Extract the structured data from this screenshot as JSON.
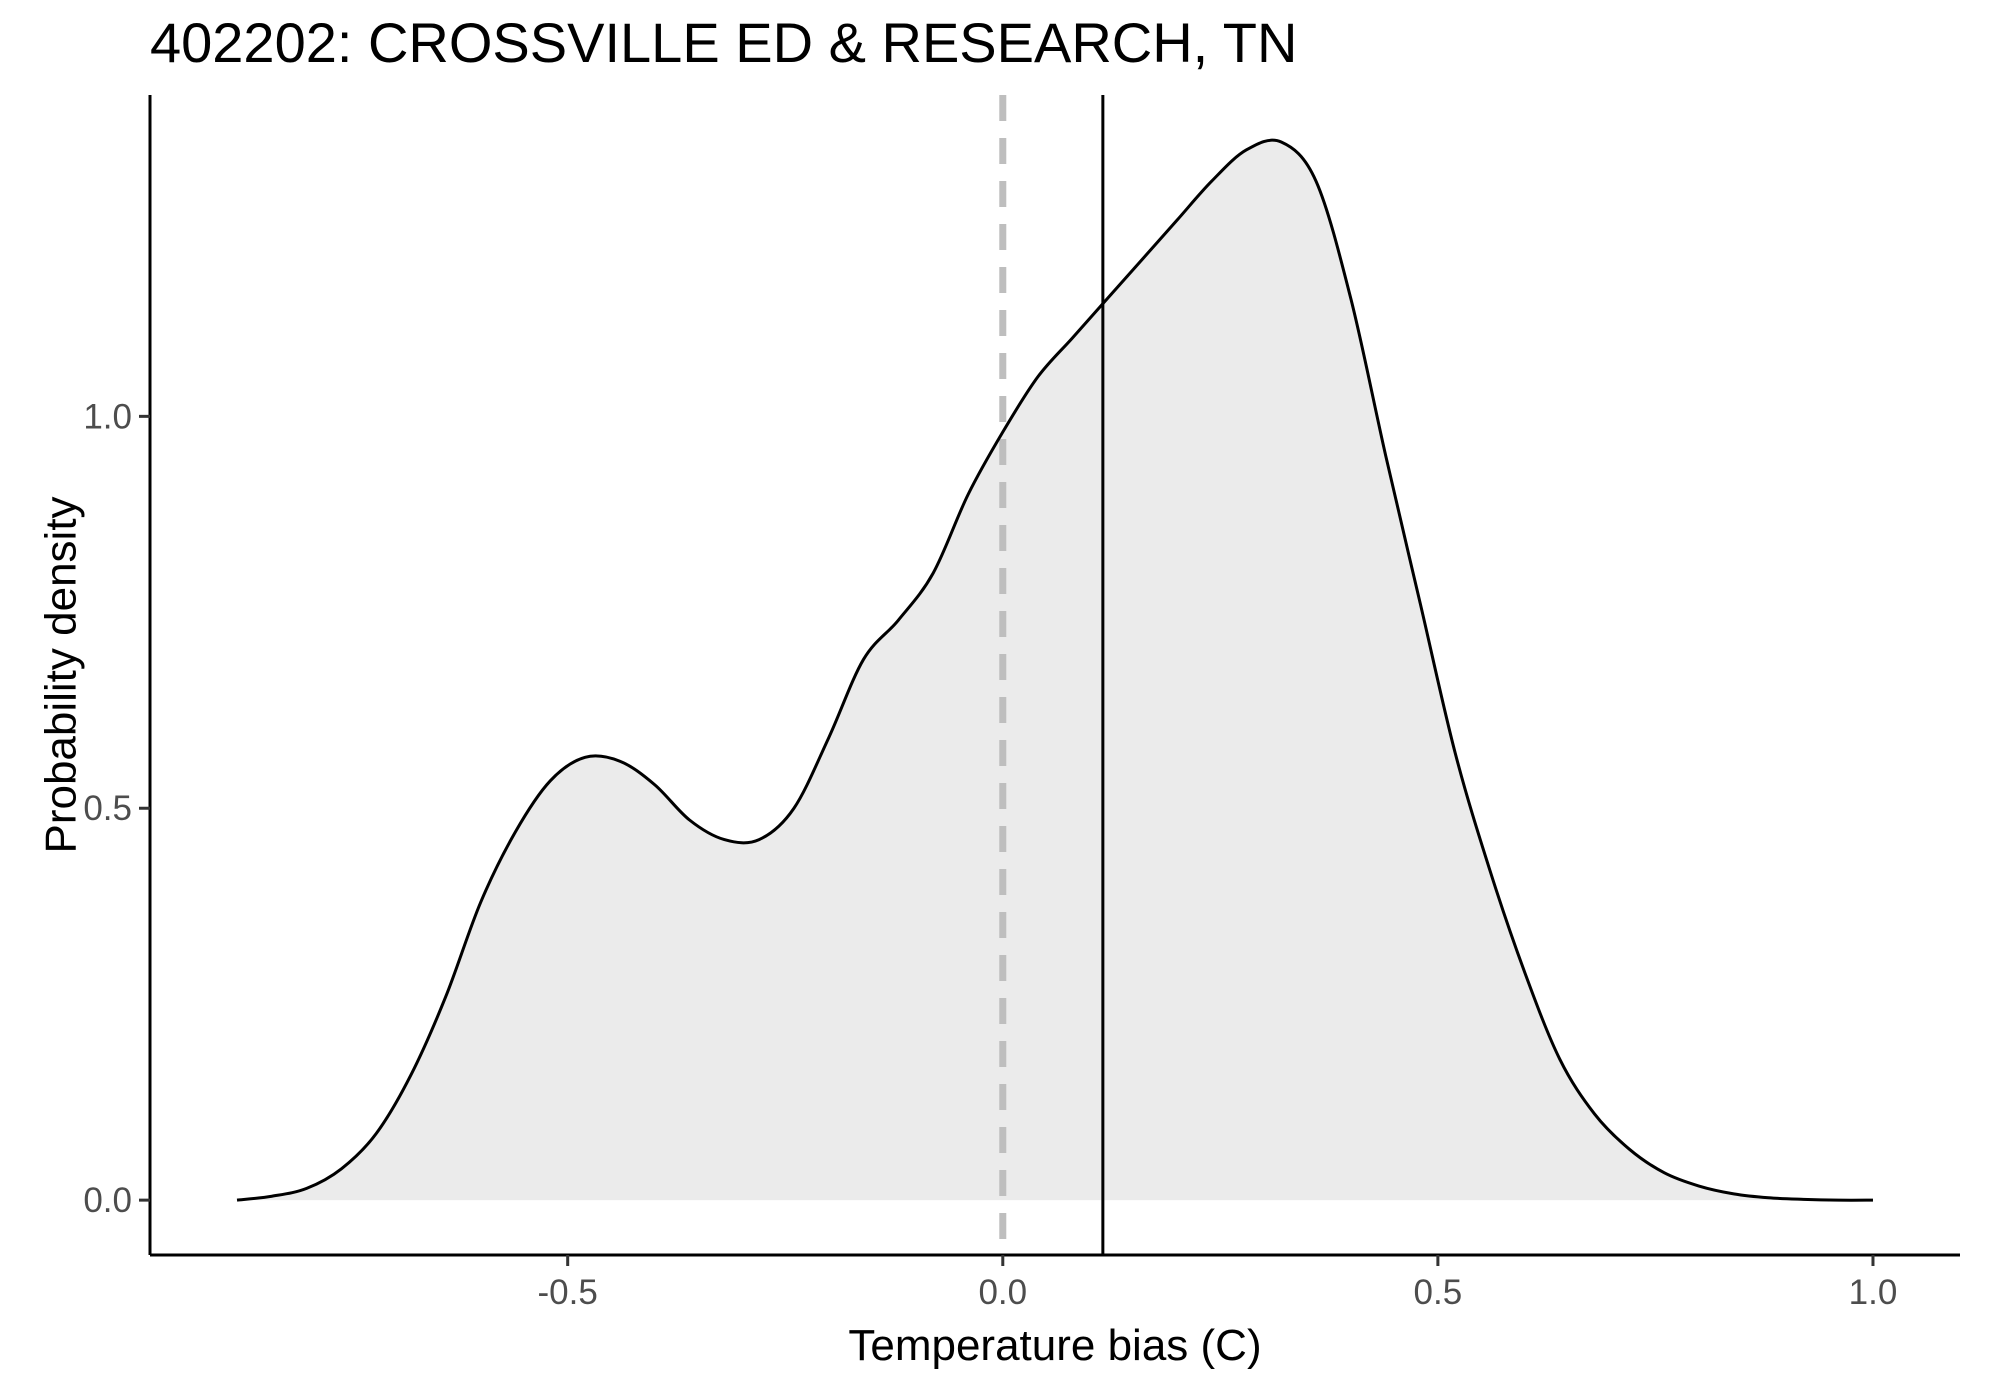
{
  "chart_data": {
    "type": "area",
    "title": "402202: CROSSVILLE ED & RESEARCH, TN",
    "xlabel": "Temperature bias (C)",
    "ylabel": "Probability density",
    "xlim": [
      -0.98,
      1.1
    ],
    "ylim": [
      -0.07,
      1.41
    ],
    "x_ticks": [
      -0.5,
      0.0,
      0.5,
      1.0
    ],
    "x_tick_labels": [
      "-0.5",
      "0.0",
      "0.5",
      "1.0"
    ],
    "y_ticks": [
      0.0,
      0.5,
      1.0
    ],
    "y_tick_labels": [
      "0.0",
      "0.5",
      "1.0"
    ],
    "grid": false,
    "legend": "none",
    "series": [
      {
        "x": [
          -0.88,
          -0.84,
          -0.8,
          -0.76,
          -0.72,
          -0.68,
          -0.64,
          -0.6,
          -0.56,
          -0.52,
          -0.48,
          -0.44,
          -0.4,
          -0.36,
          -0.32,
          -0.28,
          -0.24,
          -0.2,
          -0.16,
          -0.12,
          -0.08,
          -0.04,
          0.0,
          0.04,
          0.08,
          0.12,
          0.16,
          0.2,
          0.24,
          0.28,
          0.32,
          0.36,
          0.4,
          0.44,
          0.48,
          0.52,
          0.56,
          0.6,
          0.64,
          0.68,
          0.72,
          0.76,
          0.8,
          0.84,
          0.88,
          0.92,
          0.96,
          1.0
        ],
        "y": [
          0.0,
          0.005,
          0.015,
          0.04,
          0.085,
          0.16,
          0.26,
          0.38,
          0.47,
          0.535,
          0.565,
          0.56,
          0.53,
          0.485,
          0.46,
          0.46,
          0.5,
          0.59,
          0.69,
          0.74,
          0.8,
          0.9,
          0.98,
          1.05,
          1.1,
          1.15,
          1.2,
          1.25,
          1.3,
          1.34,
          1.35,
          1.3,
          1.15,
          0.95,
          0.76,
          0.57,
          0.42,
          0.29,
          0.18,
          0.11,
          0.065,
          0.035,
          0.018,
          0.008,
          0.003,
          0.001,
          0.0,
          0.0
        ]
      }
    ],
    "reference_lines": [
      {
        "x": 0.0,
        "style": "dashed",
        "color": "#bebebe"
      },
      {
        "x": 0.115,
        "style": "solid",
        "color": "#000000"
      }
    ],
    "fill_color": "#ebebeb",
    "line_color": "#000000"
  }
}
